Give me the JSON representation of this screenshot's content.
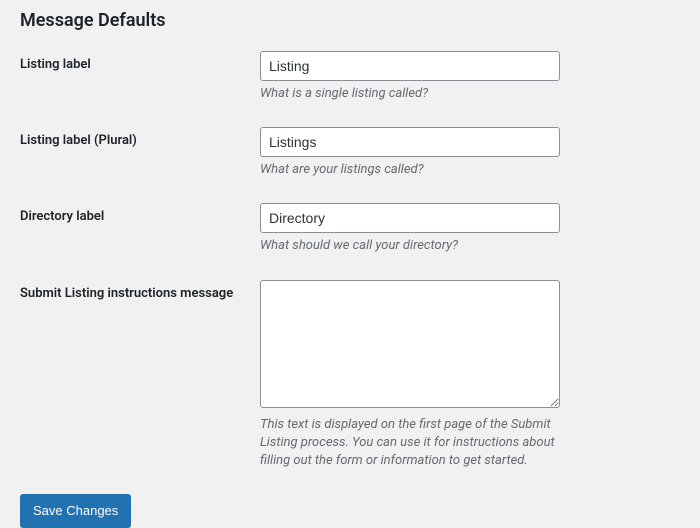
{
  "section": {
    "title": "Message Defaults"
  },
  "fields": {
    "listing_label": {
      "label": "Listing label",
      "value": "Listing",
      "description": "What is a single listing called?"
    },
    "listing_label_plural": {
      "label": "Listing label (Plural)",
      "value": "Listings",
      "description": "What are your listings called?"
    },
    "directory_label": {
      "label": "Directory label",
      "value": "Directory",
      "description": "What should we call your directory?"
    },
    "submit_instructions": {
      "label": "Submit Listing instructions message",
      "value": "",
      "description": "This text is displayed on the first page of the Submit Listing process. You can use it for instructions about filling out the form or information to get started."
    }
  },
  "buttons": {
    "save": "Save Changes"
  },
  "colors": {
    "background": "#f1f1f1",
    "input_border": "#8c8f94",
    "text": "#1d2327",
    "description": "#646970",
    "button_bg": "#2271b1",
    "button_text": "#ffffff"
  }
}
